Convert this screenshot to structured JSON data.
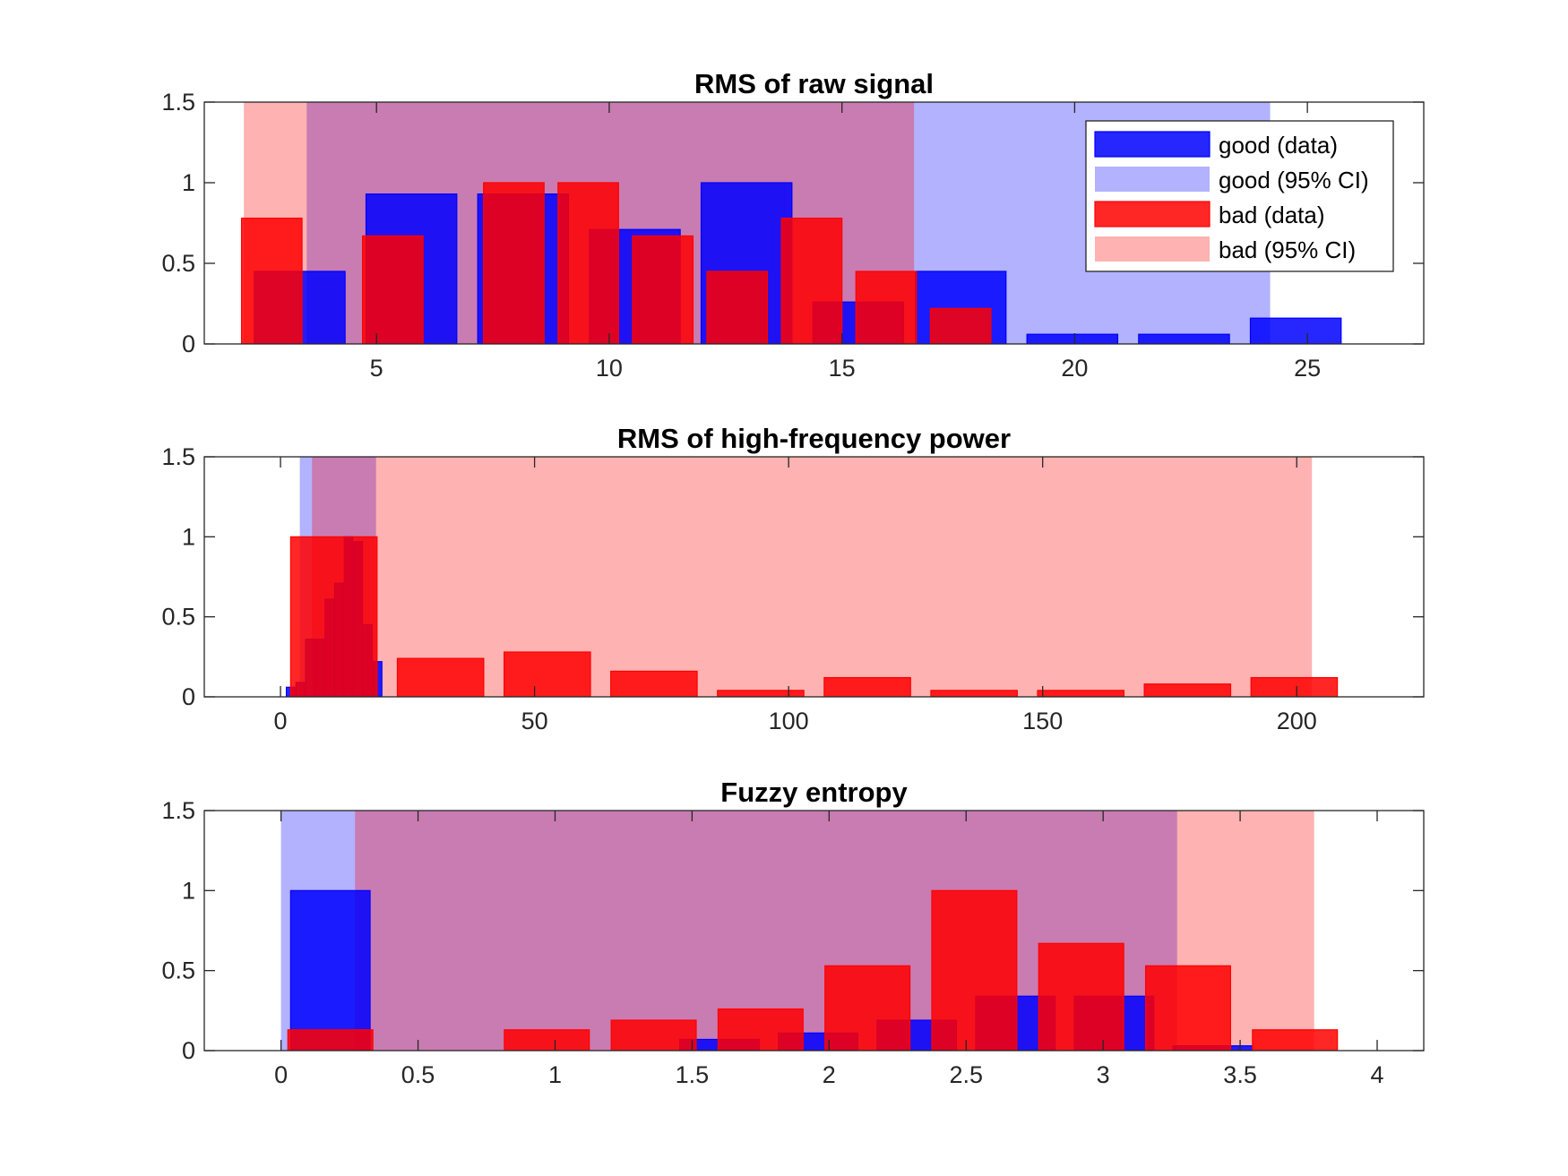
{
  "legend": {
    "placement": "top-right of first panel",
    "entries": [
      {
        "label": "good (data)",
        "color": "#0000ff",
        "alpha": 0.85
      },
      {
        "label": "good (95% CI)",
        "color": "#0000ff",
        "alpha": 0.3
      },
      {
        "label": "bad (data)",
        "color": "#ff0000",
        "alpha": 0.85
      },
      {
        "label": "bad (95% CI)",
        "color": "#ff0000",
        "alpha": 0.3
      }
    ]
  },
  "colors": {
    "good": "#0000ff",
    "bad": "#ff0000",
    "axis": "#262626"
  },
  "chart_data": [
    {
      "type": "bar",
      "title": "RMS of raw signal",
      "xlim": [
        1.3,
        27.5
      ],
      "ylim": [
        0,
        1.5
      ],
      "xticks": [
        5,
        10,
        15,
        20,
        25
      ],
      "yticks": [
        0,
        0.5,
        1,
        1.5
      ],
      "ci": {
        "good": [
          3.5,
          24.2
        ],
        "bad": [
          2.15,
          16.55
        ]
      },
      "series": [
        {
          "name": "good (data)",
          "bin_width": 1.95,
          "bins": [
            [
              3.35,
              0.45
            ],
            [
              5.75,
              0.93
            ],
            [
              8.15,
              0.93
            ],
            [
              10.55,
              0.71
            ],
            [
              12.95,
              1.0
            ],
            [
              15.35,
              0.26
            ],
            [
              17.55,
              0.45
            ],
            [
              19.95,
              0.06
            ],
            [
              22.35,
              0.06
            ],
            [
              24.75,
              0.16
            ]
          ]
        },
        {
          "name": "bad (data)",
          "bin_width": 1.3,
          "bins": [
            [
              2.75,
              0.78
            ],
            [
              5.35,
              0.67
            ],
            [
              7.95,
              1.0
            ],
            [
              9.55,
              1.0
            ],
            [
              11.15,
              0.67
            ],
            [
              12.75,
              0.45
            ],
            [
              14.35,
              0.78
            ],
            [
              15.95,
              0.45
            ],
            [
              17.55,
              0.22
            ]
          ]
        }
      ]
    },
    {
      "type": "bar",
      "title": "RMS of high-frequency power",
      "xlim": [
        -15,
        225
      ],
      "ylim": [
        0,
        1.5
      ],
      "xticks": [
        0,
        50,
        100,
        150,
        200
      ],
      "yticks": [
        0,
        0.5,
        1,
        1.5
      ],
      "ci": {
        "good": [
          3.8,
          18.8
        ],
        "bad": [
          6.2,
          203
        ]
      },
      "series": [
        {
          "name": "good (data)",
          "bin_width": 1.7,
          "bins": [
            [
              2.0,
              0.06
            ],
            [
              3.9,
              0.09
            ],
            [
              5.8,
              0.36
            ],
            [
              7.7,
              0.36
            ],
            [
              9.6,
              0.61
            ],
            [
              11.5,
              0.71
            ],
            [
              13.4,
              1.0
            ],
            [
              15.3,
              0.97
            ],
            [
              17.2,
              0.45
            ],
            [
              19.1,
              0.22
            ]
          ]
        },
        {
          "name": "bad (data)",
          "bin_width": 17,
          "bins": [
            [
              10.5,
              1.0
            ],
            [
              31.5,
              0.24
            ],
            [
              52.5,
              0.28
            ],
            [
              73.5,
              0.16
            ],
            [
              94.5,
              0.04
            ],
            [
              115.5,
              0.12
            ],
            [
              136.5,
              0.04
            ],
            [
              157.5,
              0.04
            ],
            [
              178.5,
              0.08
            ],
            [
              199.5,
              0.12
            ]
          ]
        }
      ]
    },
    {
      "type": "bar",
      "title": "Fuzzy entropy",
      "xlim": [
        -0.28,
        4.17
      ],
      "ylim": [
        0,
        1.5
      ],
      "xticks": [
        0,
        0.5,
        1,
        1.5,
        2,
        2.5,
        3,
        3.5,
        4
      ],
      "yticks": [
        0,
        0.5,
        1,
        1.5
      ],
      "xticklabels": [
        "0",
        "0.5",
        "1",
        "1.5",
        "2",
        "2.5",
        "3",
        "3.5",
        "4"
      ],
      "ci": {
        "good": [
          0.0,
          3.27
        ],
        "bad": [
          0.27,
          3.77
        ]
      },
      "series": [
        {
          "name": "good (data)",
          "bin_width": 0.29,
          "bins": [
            [
              0.18,
              1.0
            ],
            [
              1.6,
              0.07
            ],
            [
              1.96,
              0.11
            ],
            [
              2.32,
              0.19
            ],
            [
              2.68,
              0.34
            ],
            [
              3.04,
              0.34
            ],
            [
              3.4,
              0.03
            ]
          ]
        },
        {
          "name": "bad (data)",
          "bin_width": 0.31,
          "bins": [
            [
              0.18,
              0.13
            ],
            [
              0.97,
              0.13
            ],
            [
              1.36,
              0.19
            ],
            [
              1.75,
              0.26
            ],
            [
              2.14,
              0.53
            ],
            [
              2.53,
              1.0
            ],
            [
              2.92,
              0.67
            ],
            [
              3.31,
              0.53
            ],
            [
              3.7,
              0.13
            ]
          ]
        }
      ]
    }
  ]
}
